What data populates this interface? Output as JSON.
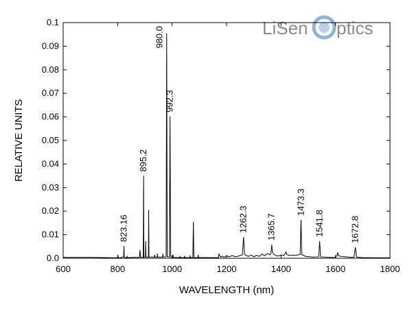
{
  "logo": {
    "part1": "LiSen",
    "part2": "ptics"
  },
  "chart_data": {
    "type": "line",
    "xlabel": "WAVELENGTH (nm)",
    "ylabel": "RELATIVE UNITS",
    "xlim": [
      600,
      1800
    ],
    "ylim": [
      0,
      0.1
    ],
    "xticks": [
      "600",
      "800",
      "1000",
      "1200",
      "1400",
      "1600",
      "1800"
    ],
    "yticks": [
      "0.0",
      "0.01",
      "0.02",
      "0.03",
      "0.04",
      "0.05",
      "0.06",
      "0.07",
      "0.08",
      "0.09",
      "0.1"
    ],
    "grid": false,
    "x": [
      600,
      700,
      790,
      800,
      801,
      802,
      810,
      822,
      823.16,
      824.3,
      826,
      834,
      835,
      836,
      860,
      880,
      882,
      884,
      893,
      894,
      895.2,
      896.4,
      898,
      902,
      903,
      904,
      906,
      913,
      914,
      915,
      917,
      935,
      936,
      937,
      945,
      946,
      947,
      965,
      966,
      967,
      975,
      978,
      980,
      982,
      985,
      990,
      992.3,
      994.6,
      997,
      1003,
      1004,
      1005,
      1028,
      1029,
      1030,
      1045,
      1046,
      1047,
      1060,
      1065,
      1066,
      1067,
      1070,
      1076,
      1078,
      1080,
      1082,
      1095,
      1096,
      1097,
      1165,
      1170,
      1172,
      1178,
      1185,
      1190,
      1200,
      1210,
      1220,
      1230,
      1240,
      1250,
      1258,
      1262.3,
      1266,
      1272,
      1280,
      1290,
      1300,
      1310,
      1320,
      1330,
      1340,
      1350,
      1360,
      1363,
      1365.7,
      1368,
      1372,
      1380,
      1390,
      1400,
      1410,
      1415,
      1418,
      1421,
      1430,
      1440,
      1450,
      1460,
      1470,
      1473.3,
      1476,
      1490,
      1520,
      1538,
      1541.8,
      1545,
      1580,
      1600,
      1605,
      1608,
      1610,
      1620,
      1660,
      1668,
      1672.8,
      1677,
      1700,
      1750,
      1800
    ],
    "y": [
      0.0004,
      0.0004,
      0.0002,
      0.0002,
      0.0015,
      0.0002,
      0.0003,
      0.0006,
      0.0052,
      0.0006,
      0.0003,
      0.0003,
      0.001,
      0.0003,
      0.0004,
      0.0004,
      0.0035,
      0.0004,
      0.0005,
      0.0004,
      0.035,
      0.0005,
      0.0005,
      0.0005,
      0.0073,
      0.0005,
      0.0005,
      0.0005,
      0.0205,
      0.0005,
      0.0005,
      0.0005,
      0.0015,
      0.0005,
      0.0005,
      0.002,
      0.0005,
      0.0005,
      0.002,
      0.0005,
      0.0006,
      0.0007,
      0.0955,
      0.0007,
      0.0006,
      0.0006,
      0.0602,
      0.0006,
      0.0005,
      0.0004,
      0.0015,
      0.0004,
      0.0003,
      0.001,
      0.0003,
      0.0003,
      0.001,
      0.0003,
      0.0003,
      0.0003,
      0.0012,
      0.0003,
      0.0003,
      0.0003,
      0.0155,
      0.0003,
      0.0003,
      0.0003,
      0.0015,
      0.0003,
      0.0003,
      0.0003,
      0.0018,
      0.0005,
      0.0009,
      0.0004,
      0.001,
      0.0006,
      0.0012,
      0.0007,
      0.0008,
      0.0012,
      0.0015,
      0.009,
      0.0016,
      0.0012,
      0.0008,
      0.0014,
      0.0006,
      0.0013,
      0.0008,
      0.0018,
      0.0011,
      0.002,
      0.0015,
      0.0022,
      0.0058,
      0.0028,
      0.0018,
      0.0012,
      0.001,
      0.0014,
      0.0012,
      0.002,
      0.0027,
      0.0016,
      0.0012,
      0.0014,
      0.0012,
      0.0014,
      0.0016,
      0.0163,
      0.0016,
      0.0008,
      0.0005,
      0.0006,
      0.0073,
      0.0006,
      0.0004,
      0.0004,
      0.0012,
      0.0025,
      0.0012,
      0.0008,
      0.0004,
      0.0005,
      0.0047,
      0.0005,
      0.0003,
      0.0002,
      0.0002
    ],
    "peak_labels": [
      {
        "text": "823.16",
        "x": 823.16,
        "y": 0.0052
      },
      {
        "text": "895.2",
        "x": 895.2,
        "y": 0.035
      },
      {
        "text": "980.0",
        "x": 980.0,
        "y": 0.0955
      },
      {
        "text": "992.3",
        "x": 992.3,
        "y": 0.0602
      },
      {
        "text": "1262.3",
        "x": 1262.3,
        "y": 0.009
      },
      {
        "text": "1365.7",
        "x": 1365.7,
        "y": 0.0058
      },
      {
        "text": "1473.3",
        "x": 1473.3,
        "y": 0.0163
      },
      {
        "text": "1541.8",
        "x": 1541.8,
        "y": 0.0073
      },
      {
        "text": "1672.8",
        "x": 1672.8,
        "y": 0.0047
      }
    ],
    "colors": {
      "line": "#000000",
      "axis": "#000000",
      "logo": "#8a8a8a",
      "logo_accent": "#8fb3d9"
    }
  }
}
